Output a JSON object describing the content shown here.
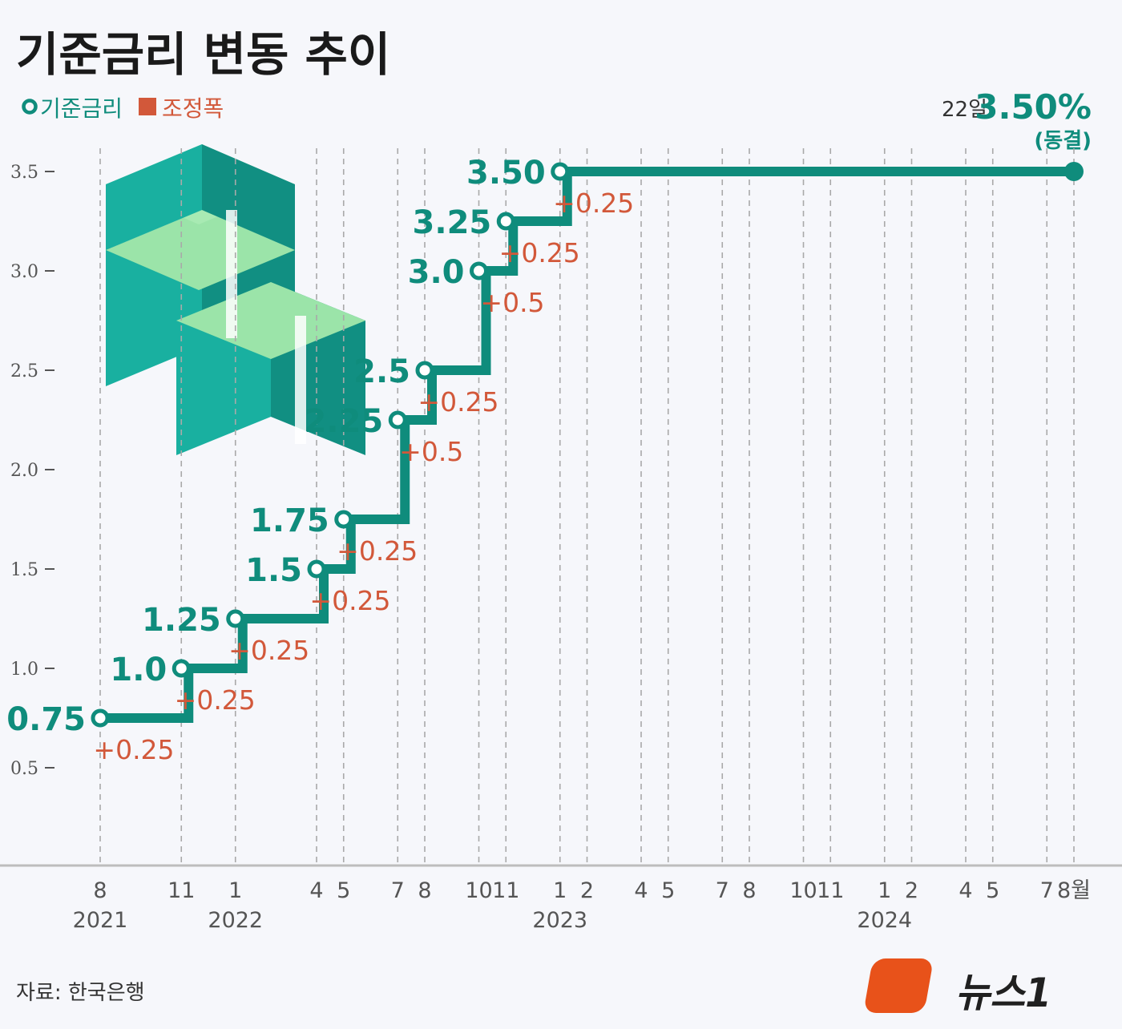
{
  "title": "기준금리 변동 추이",
  "legend": {
    "rate_label": "기준금리",
    "change_label": "조정폭"
  },
  "latest": {
    "day_label": "22일",
    "value_label": "3.50%",
    "note": "(동결)"
  },
  "source": "자료: 한국은행",
  "logo_text": "뉴스1",
  "colors": {
    "rate": "#0f8c7c",
    "change": "#d2583a",
    "grid": "#a9a9a9",
    "title": "#1a1a1a"
  },
  "chart_data": {
    "type": "line",
    "step": true,
    "title": "기준금리 변동 추이",
    "ylim": [
      0.3,
      3.8
    ],
    "yticks": [
      0.5,
      1.0,
      1.5,
      2.0,
      2.5,
      3.0,
      3.5
    ],
    "ytick_labels": [
      "0.5",
      "1.0",
      "1.5",
      "2.0",
      "2.5",
      "3.0",
      "3.5"
    ],
    "xlim": [
      "2021-08",
      "2024-08"
    ],
    "month_ticks": [
      {
        "date": "2021-08",
        "label": "8"
      },
      {
        "date": "2021-11",
        "label": "11"
      },
      {
        "date": "2022-01",
        "label": "1"
      },
      {
        "date": "2022-04",
        "label": "4"
      },
      {
        "date": "2022-05",
        "label": "5"
      },
      {
        "date": "2022-07",
        "label": "7"
      },
      {
        "date": "2022-08",
        "label": "8"
      },
      {
        "date": "2022-10",
        "label": "10"
      },
      {
        "date": "2022-11",
        "label": "11"
      },
      {
        "date": "2023-01",
        "label": "1"
      },
      {
        "date": "2023-02",
        "label": "2"
      },
      {
        "date": "2023-04",
        "label": "4"
      },
      {
        "date": "2023-05",
        "label": "5"
      },
      {
        "date": "2023-07",
        "label": "7"
      },
      {
        "date": "2023-08",
        "label": "8"
      },
      {
        "date": "2023-10",
        "label": "10"
      },
      {
        "date": "2023-11",
        "label": "11"
      },
      {
        "date": "2024-01",
        "label": "1"
      },
      {
        "date": "2024-02",
        "label": "2"
      },
      {
        "date": "2024-04",
        "label": "4"
      },
      {
        "date": "2024-05",
        "label": "5"
      },
      {
        "date": "2024-07",
        "label": "7"
      },
      {
        "date": "2024-08",
        "label": "8월"
      }
    ],
    "year_labels": [
      {
        "date": "2021-08",
        "label": "2021"
      },
      {
        "date": "2022-01",
        "label": "2022"
      },
      {
        "date": "2023-01",
        "label": "2023"
      },
      {
        "date": "2024-01",
        "label": "2024"
      }
    ],
    "series": [
      {
        "points": [
          {
            "date": "2021-08",
            "value": 0.75,
            "label": "0.75",
            "change": "+0.25"
          },
          {
            "date": "2021-11",
            "value": 1.0,
            "label": "1.0",
            "change": "+0.25"
          },
          {
            "date": "2022-01",
            "value": 1.25,
            "label": "1.25",
            "change": "+0.25"
          },
          {
            "date": "2022-04",
            "value": 1.5,
            "label": "1.5",
            "change": "+0.25"
          },
          {
            "date": "2022-05",
            "value": 1.75,
            "label": "1.75",
            "change": "+0.25"
          },
          {
            "date": "2022-07",
            "value": 2.25,
            "label": "2.25",
            "change": "+0.5"
          },
          {
            "date": "2022-08",
            "value": 2.5,
            "label": "2.5",
            "change": "+0.25"
          },
          {
            "date": "2022-10",
            "value": 3.0,
            "label": "3.0",
            "change": "+0.5"
          },
          {
            "date": "2022-11",
            "value": 3.25,
            "label": "3.25",
            "change": "+0.25"
          },
          {
            "date": "2023-01",
            "value": 3.5,
            "label": "3.50",
            "change": "+0.25"
          }
        ],
        "end": {
          "date": "2024-08",
          "value": 3.5
        }
      }
    ]
  }
}
